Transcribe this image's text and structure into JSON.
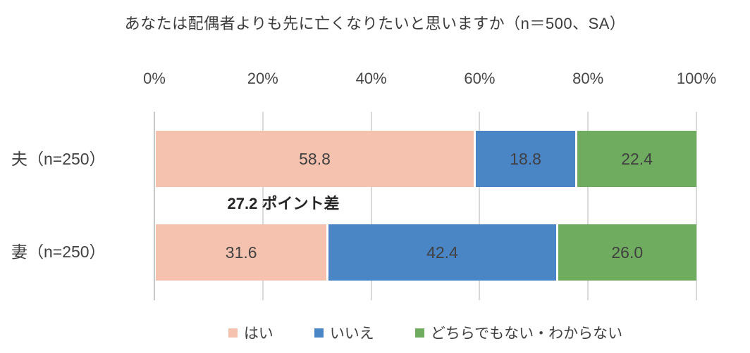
{
  "title": "あなたは配偶者よりも先に亡くなりたいと思いますか（n＝500、SA）",
  "chart_data": {
    "type": "bar",
    "stacked": true,
    "orientation": "horizontal",
    "title": "あなたは配偶者よりも先に亡くなりたいと思いますか（n＝500、SA）",
    "categories": [
      "夫（n=250）",
      "妻（n=250）"
    ],
    "series": [
      {
        "name": "はい",
        "color": "#F5C2AF",
        "values": [
          58.8,
          31.6
        ]
      },
      {
        "name": "いいえ",
        "color": "#4A85C6",
        "values": [
          18.8,
          42.4
        ]
      },
      {
        "name": "どちらでもない・わからない",
        "color": "#6FAC5F",
        "values": [
          22.4,
          26.0
        ]
      }
    ],
    "x_ticks": [
      "0%",
      "20%",
      "40%",
      "60%",
      "80%",
      "100%"
    ],
    "xlim": [
      0,
      100
    ],
    "grid": true,
    "value_labels": true,
    "annotation": "27.2 ポイント差",
    "legend_position": "bottom",
    "colors": {
      "gridline": "#D9D9D9",
      "axis_line": "#C7C7C7",
      "label_text": "#404040",
      "annotation_text": "#262626"
    }
  }
}
